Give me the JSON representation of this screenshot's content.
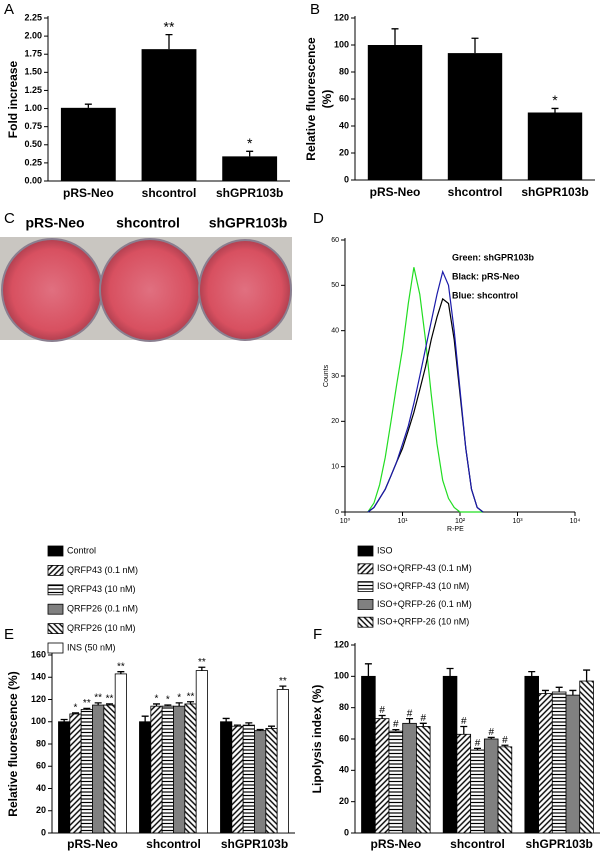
{
  "chart_data": [
    {
      "type": "bar",
      "panel": "A",
      "ylabel": [
        "Fold increase"
      ],
      "categories": [
        "pRS-Neo",
        "shcontrol",
        "shGPR103b"
      ],
      "values": [
        1.01,
        1.82,
        0.34
      ],
      "errors": [
        0.05,
        0.2,
        0.07
      ],
      "annotations": [
        null,
        "**",
        "*"
      ],
      "color": "#000000",
      "ylim": [
        0,
        2.25
      ],
      "yticks": [
        {
          "value": 0,
          "label": "0.00"
        },
        0.25,
        {
          "value": 0.5,
          "label": "0.50"
        },
        0.75,
        {
          "value": 1,
          "label": "1.00"
        },
        1.25,
        {
          "value": 1.5,
          "label": "1.50"
        },
        1.75,
        {
          "value": 2,
          "label": "2.00"
        },
        2.25
      ]
    },
    {
      "type": "bar",
      "panel": "B",
      "ylabel": [
        "Relative fluorescence",
        "(%)"
      ],
      "categories": [
        "pRS-Neo",
        "shcontrol",
        "shGPR103b"
      ],
      "values": [
        100,
        94,
        50
      ],
      "errors": [
        12,
        11,
        3
      ],
      "annotations": [
        null,
        null,
        "*"
      ],
      "color": "#000000",
      "ylim": [
        0,
        120
      ],
      "yticks": [
        0,
        20,
        40,
        60,
        80,
        100,
        120
      ]
    },
    {
      "type": "image",
      "panel": "C",
      "labels": [
        "pRS-Neo",
        "shcontrol",
        "shGPR103b"
      ]
    },
    {
      "type": "line",
      "panel": "D",
      "xlabel": "R-PE",
      "ylabel": [
        "Counts"
      ],
      "xlog": true,
      "x": [
        2.5,
        3.2,
        4,
        5,
        6.3,
        7.9,
        10,
        12.6,
        15.8,
        20,
        25.1,
        31.6,
        39.8,
        50.1,
        63.1,
        79.4,
        100,
        125.9,
        158.5,
        199.5,
        251.2
      ],
      "series": [
        {
          "name": "Green: shGPR103b",
          "color": "#22dd22",
          "values": [
            0,
            2,
            6,
            12,
            20,
            28,
            36,
            46,
            54,
            48,
            38,
            26,
            15,
            7,
            3,
            1,
            0,
            0,
            0,
            0,
            0
          ]
        },
        {
          "name": "Black: pRS-Neo",
          "color": "#000000",
          "values": [
            0,
            1,
            3,
            5,
            8,
            11,
            14,
            18,
            22,
            27,
            32,
            38,
            43,
            47,
            46,
            38,
            26,
            14,
            5,
            1,
            0
          ]
        },
        {
          "name": "Blue: shcontrol",
          "color": "#1a1aaa",
          "values": [
            0,
            1,
            3,
            5,
            8,
            11,
            15,
            19,
            24,
            30,
            36,
            42,
            48,
            53,
            50,
            40,
            27,
            14,
            5,
            1,
            0
          ]
        }
      ],
      "legend": "upper right",
      "xlim": [
        1,
        10000
      ],
      "xticks": [
        {
          "value": 1,
          "label": "10⁰"
        },
        {
          "value": 10,
          "label": "10¹"
        },
        {
          "value": 100,
          "label": "10²"
        },
        {
          "value": 1000,
          "label": "10³"
        },
        {
          "value": 10000,
          "label": "10⁴"
        }
      ],
      "ylim": [
        0,
        60
      ],
      "yticks": [
        0,
        10,
        20,
        30,
        40,
        50,
        60
      ]
    },
    {
      "type": "groupbar",
      "panel": "E",
      "ylabel": [
        "Relative fluorescence (%)"
      ],
      "categories": [
        "pRS-Neo",
        "shcontrol",
        "shGPR103b"
      ],
      "series": [
        {
          "name": "Control",
          "color": "#000000",
          "pattern": "solid",
          "values": [
            100,
            100,
            100
          ],
          "errors": [
            2,
            5,
            3
          ],
          "annotations": [
            null,
            null,
            null
          ]
        },
        {
          "name": "QRFP43 (0.1 nM)",
          "color": "#ffffff",
          "pattern": "diagonal",
          "values": [
            107,
            114,
            96
          ],
          "errors": [
            1,
            2,
            1
          ],
          "annotations": [
            "*",
            "*",
            null
          ]
        },
        {
          "name": "QRFP43 (10 nM)",
          "color": "#ffffff",
          "pattern": "horizontal",
          "values": [
            111,
            114,
            97
          ],
          "errors": [
            1,
            1,
            2
          ],
          "annotations": [
            "**",
            "*",
            null
          ]
        },
        {
          "name": "QRFP26 (0.1 nM)",
          "color": "#808080",
          "pattern": "solid",
          "values": [
            115,
            114,
            92
          ],
          "errors": [
            2,
            3,
            1
          ],
          "annotations": [
            "**",
            "*",
            null
          ]
        },
        {
          "name": "QRFP26 (10 nM)",
          "color": "#ffffff",
          "pattern": "backdiagonal",
          "values": [
            115,
            116,
            94
          ],
          "errors": [
            1,
            2,
            2
          ],
          "annotations": [
            "**",
            "**",
            null
          ]
        },
        {
          "name": "INS (50 nM)",
          "color": "#ffffff",
          "pattern": "solid",
          "values": [
            143,
            146,
            129
          ],
          "errors": [
            2,
            3,
            3
          ],
          "annotations": [
            "**",
            "**",
            "**"
          ]
        }
      ],
      "ylim": [
        0,
        160
      ],
      "yticks": [
        0,
        20,
        40,
        60,
        80,
        100,
        120,
        140,
        160
      ]
    },
    {
      "type": "groupbar",
      "panel": "F",
      "ylabel": [
        "Lipolysis index  (%)"
      ],
      "categories": [
        "pRS-Neo",
        "shcontrol",
        "shGPR103b"
      ],
      "series": [
        {
          "name": "ISO",
          "color": "#000000",
          "pattern": "solid",
          "values": [
            100,
            100,
            100
          ],
          "errors": [
            8,
            5,
            3
          ],
          "annotations": [
            null,
            null,
            null
          ]
        },
        {
          "name": "ISO+QRFP-43 (0.1 nM)",
          "color": "#ffffff",
          "pattern": "diagonal",
          "values": [
            73,
            63,
            89
          ],
          "errors": [
            2,
            5,
            2
          ],
          "annotations": [
            "#",
            "#",
            null
          ]
        },
        {
          "name": "ISO+QRFP-43 (10 nM)",
          "color": "#ffffff",
          "pattern": "horizontal",
          "values": [
            65,
            53,
            90
          ],
          "errors": [
            1,
            1,
            3
          ],
          "annotations": [
            "#",
            "#",
            null
          ]
        },
        {
          "name": "ISO+QRFP-26 (0.1 nM)",
          "color": "#808080",
          "pattern": "solid",
          "values": [
            70,
            60,
            88
          ],
          "errors": [
            3,
            1,
            3
          ],
          "annotations": [
            "#",
            "#",
            null
          ]
        },
        {
          "name": "ISO+QRFP-26 (10 nM)",
          "color": "#ffffff",
          "pattern": "backdiagonal",
          "values": [
            68,
            55,
            97
          ],
          "errors": [
            2,
            1,
            7
          ],
          "annotations": [
            "#",
            "#",
            null
          ]
        }
      ],
      "ylim": [
        0,
        120
      ],
      "yticks": [
        0,
        20,
        40,
        60,
        80,
        100,
        120
      ]
    }
  ]
}
